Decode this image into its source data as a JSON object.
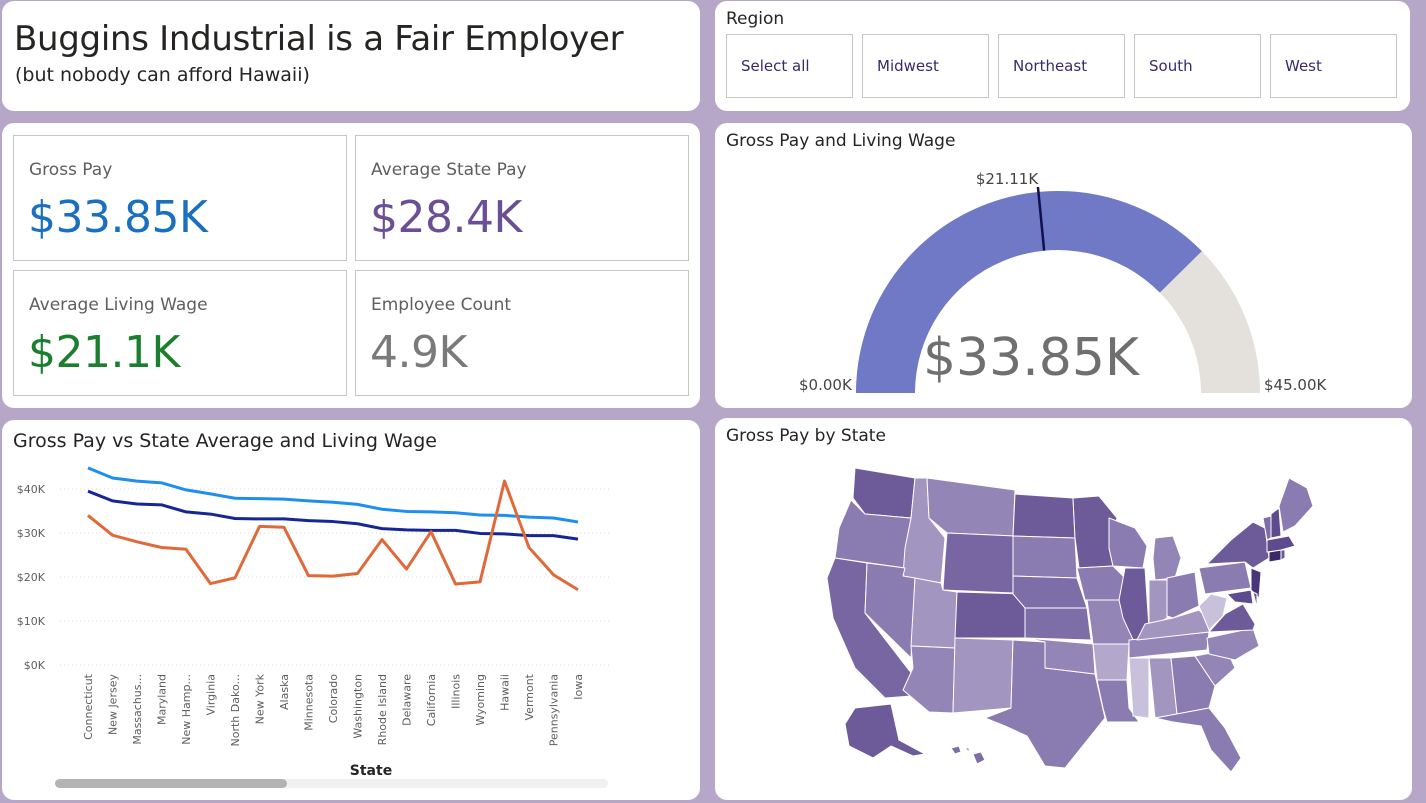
{
  "header": {
    "title": "Buggins Industrial is a Fair Employer",
    "subtitle": "(but nobody can afford Hawaii)"
  },
  "region_slicer": {
    "title": "Region",
    "options": [
      "Select all",
      "Midwest",
      "Northeast",
      "South",
      "West"
    ]
  },
  "kpis": [
    {
      "label": "Gross Pay",
      "value": "$33.85K",
      "color": "#1a6fbf"
    },
    {
      "label": "Average State Pay",
      "value": "$28.4K",
      "color": "#6a4f97"
    },
    {
      "label": "Average Living Wage",
      "value": "$21.1K",
      "color": "#1b7f2f"
    },
    {
      "label": "Employee Count",
      "value": "4.9K",
      "color": "#7a7a7a"
    }
  ],
  "gauge": {
    "title": "Gross Pay and Living Wage",
    "value_label": "$33.85K",
    "min_label": "$0.00K",
    "max_label": "$45.00K",
    "target_label": "$21.11K",
    "value": 33.85,
    "min": 0,
    "max": 45,
    "target": 21.11,
    "fill_color": "#6f79c6",
    "track_color": "#e4e0dc"
  },
  "line_chart": {
    "title": "Gross Pay vs State Average and Living Wage",
    "xlabel": "State",
    "y_ticks": [
      "$0K",
      "$10K",
      "$20K",
      "$30K",
      "$40K"
    ]
  },
  "map": {
    "title": "Gross Pay by State"
  },
  "chart_data": {
    "type": "line",
    "title": "Gross Pay vs State Average and Living Wage",
    "xlabel": "State",
    "ylabel": "",
    "ylim": [
      0,
      50000
    ],
    "y_tick_values": [
      0,
      10000,
      20000,
      30000,
      40000
    ],
    "grid": true,
    "categories": [
      "Connecticut",
      "New Jersey",
      "Massachus...",
      "Maryland",
      "New Hamp...",
      "Virginia",
      "North Dako...",
      "New York",
      "Alaska",
      "Minnesota",
      "Colorado",
      "Washington",
      "Rhode Island",
      "Delaware",
      "California",
      "Illinois",
      "Wyoming",
      "Hawaii",
      "Vermont",
      "Pennsylvania",
      "Iowa"
    ],
    "series": [
      {
        "color": "#1f8fef",
        "values": [
          44800,
          42500,
          41800,
          41400,
          39800,
          38900,
          37900,
          37800,
          37700,
          37300,
          37000,
          36500,
          35400,
          34900,
          34800,
          34600,
          34100,
          34000,
          33600,
          33400,
          32500
        ]
      },
      {
        "color": "#152795",
        "values": [
          39500,
          37300,
          36600,
          36400,
          34800,
          34300,
          33300,
          33200,
          33200,
          32800,
          32600,
          32100,
          31000,
          30700,
          30600,
          30600,
          29900,
          29800,
          29400,
          29400,
          28600
        ]
      },
      {
        "color": "#e0693a",
        "values": [
          34000,
          29500,
          28000,
          26700,
          26300,
          18500,
          19800,
          31500,
          31300,
          20300,
          20200,
          20800,
          28500,
          21800,
          30300,
          18400,
          18900,
          41800,
          26700,
          20500,
          17100
        ]
      }
    ]
  }
}
